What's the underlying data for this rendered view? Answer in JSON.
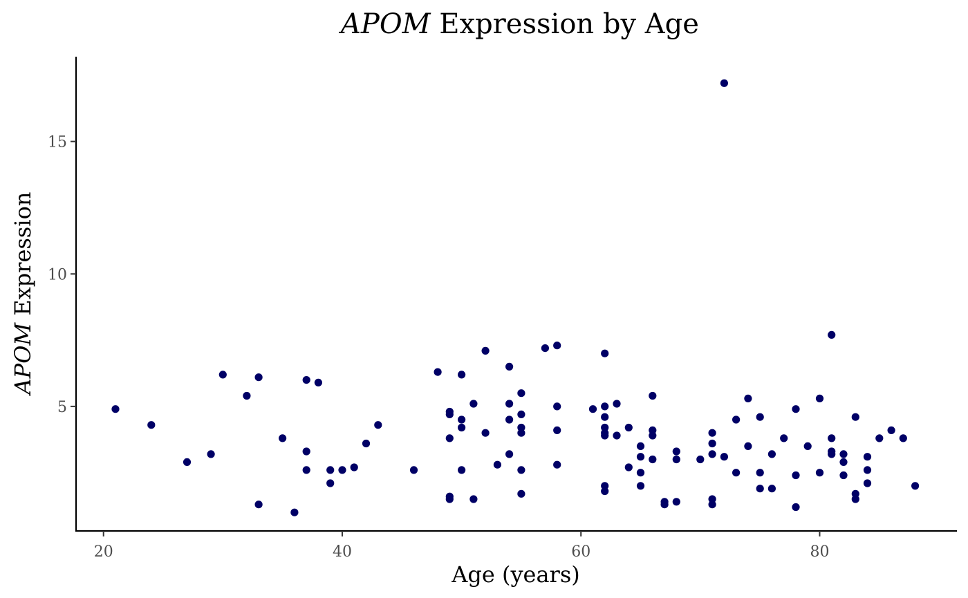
{
  "chart_data": {
    "type": "scatter",
    "title_italic": "APOM",
    "title_rest": " Expression by Age",
    "xlabel": "Age (years)",
    "ylabel_italic": "APOM",
    "ylabel_rest": " Expression",
    "xlim": [
      17.7,
      91.5
    ],
    "ylim": [
      0.3,
      18.2
    ],
    "x_ticks": [
      20,
      40,
      60,
      80
    ],
    "y_ticks": [
      5,
      10,
      15
    ],
    "x_tick_labels": [
      "20",
      "40",
      "60",
      "80"
    ],
    "y_tick_labels": [
      "5",
      "10",
      "15"
    ],
    "point_color": "#000066",
    "grid": false,
    "legend": "none",
    "series": [
      {
        "x": [
          21,
          24,
          27,
          29,
          30,
          32,
          33,
          33,
          35,
          36,
          37,
          37,
          37,
          38,
          39,
          39,
          40,
          41,
          42,
          43,
          46,
          48,
          49,
          49,
          49,
          49,
          49,
          50,
          50,
          50,
          50,
          51,
          51,
          52,
          52,
          53,
          54,
          54,
          54,
          54,
          55,
          55,
          55,
          55,
          55,
          55,
          57,
          58,
          58,
          58,
          58,
          61,
          62,
          62,
          62,
          62,
          62,
          62,
          62,
          62,
          63,
          63,
          64,
          64,
          65,
          65,
          65,
          65,
          66,
          66,
          66,
          66,
          67,
          67,
          68,
          68,
          68,
          70,
          71,
          71,
          71,
          71,
          71,
          72,
          72,
          73,
          73,
          74,
          74,
          75,
          75,
          75,
          76,
          76,
          77,
          78,
          78,
          78,
          79,
          80,
          80,
          81,
          81,
          81,
          81,
          82,
          82,
          82,
          83,
          83,
          83,
          84,
          84,
          84,
          85,
          86,
          87,
          88
        ],
        "y": [
          4.9,
          4.3,
          2.9,
          3.2,
          6.2,
          5.4,
          6.1,
          1.3,
          3.8,
          1.0,
          6.0,
          3.3,
          2.6,
          5.9,
          2.6,
          2.1,
          2.6,
          2.7,
          3.6,
          4.3,
          2.6,
          6.3,
          4.8,
          4.7,
          3.8,
          1.6,
          1.5,
          6.2,
          4.5,
          4.2,
          2.6,
          5.1,
          1.5,
          7.1,
          4.0,
          2.8,
          6.5,
          5.1,
          4.5,
          3.2,
          5.5,
          4.7,
          4.2,
          4.0,
          2.6,
          1.7,
          7.2,
          7.3,
          5.0,
          4.1,
          2.8,
          4.9,
          7.0,
          5.0,
          4.6,
          4.2,
          4.0,
          3.9,
          2.0,
          1.8,
          5.1,
          3.9,
          4.2,
          2.7,
          3.5,
          3.1,
          2.5,
          2.0,
          5.4,
          4.1,
          3.9,
          3.0,
          1.4,
          1.3,
          3.3,
          3.0,
          1.4,
          3.0,
          4.0,
          3.6,
          3.2,
          1.5,
          1.3,
          17.2,
          3.1,
          4.5,
          2.5,
          5.3,
          3.5,
          4.6,
          2.5,
          1.9,
          3.2,
          1.9,
          3.8,
          4.9,
          2.4,
          1.2,
          3.5,
          5.3,
          2.5,
          7.7,
          3.8,
          3.3,
          3.2,
          3.2,
          2.9,
          2.4,
          4.6,
          1.7,
          1.5,
          3.1,
          2.6,
          2.1,
          3.8,
          4.1,
          3.8,
          2.0
        ]
      }
    ]
  }
}
